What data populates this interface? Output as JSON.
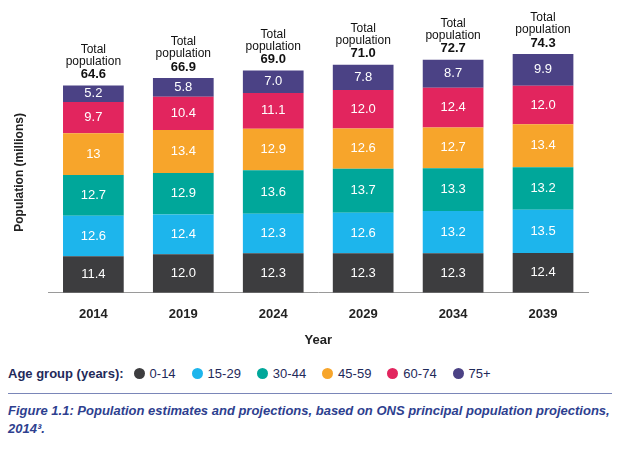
{
  "chart_data": {
    "type": "bar",
    "stacked": true,
    "data_labels": true,
    "grid": false,
    "tick_labels": "x",
    "legend": "bottom",
    "legend_title": "Age group (years):",
    "x_label": "Year",
    "y_label": "Population (millions)",
    "caption": "Figure 1.1: Population estimates and projections, based on ONS principal population projections, 2014³.",
    "total_label": "Total population",
    "totals": [
      64.6,
      66.9,
      69.0,
      71.0,
      72.7,
      74.3
    ],
    "total_value_labels": [
      "64.6",
      "66.9",
      "69.0",
      "71.0",
      "72.7",
      "74.3"
    ],
    "categories": [
      "2014",
      "2019",
      "2024",
      "2029",
      "2034",
      "2039"
    ],
    "ylim": [
      0,
      75
    ],
    "yticks": [
      0,
      75
    ],
    "series": [
      {
        "name": "0-14",
        "color": "#3d3d3f",
        "values": [
          11.4,
          12.0,
          12.3,
          12.3,
          12.3,
          12.4
        ],
        "value_labels": [
          "11.4",
          "12.0",
          "12.3",
          "12.3",
          "12.3",
          "12.4"
        ]
      },
      {
        "name": "15-29",
        "color": "#1db5ec",
        "values": [
          12.6,
          12.4,
          12.3,
          12.6,
          13.2,
          13.5
        ],
        "value_labels": [
          "12.6",
          "12.4",
          "12.3",
          "12.6",
          "13.2",
          "13.5"
        ]
      },
      {
        "name": "30-44",
        "color": "#00a79a",
        "values": [
          12.7,
          12.9,
          13.6,
          13.7,
          13.3,
          13.2
        ],
        "value_labels": [
          "12.7",
          "12.9",
          "13.6",
          "13.7",
          "13.3",
          "13.2"
        ]
      },
      {
        "name": "45-59",
        "color": "#f7a52b",
        "values": [
          13,
          13.4,
          12.9,
          12.6,
          12.7,
          13.4
        ],
        "value_labels": [
          "13",
          "13.4",
          "12.9",
          "12.6",
          "12.7",
          "13.4"
        ]
      },
      {
        "name": "60-74",
        "color": "#e2255e",
        "values": [
          9.7,
          10.4,
          11.1,
          12.0,
          12.4,
          12.0
        ],
        "value_labels": [
          "9.7",
          "10.4",
          "11.1",
          "12.0",
          "12.4",
          "12.0"
        ]
      },
      {
        "name": "75+",
        "color": "#4b4285",
        "values": [
          5.2,
          5.8,
          7.0,
          7.8,
          8.7,
          9.9
        ],
        "value_labels": [
          "5.2",
          "5.8",
          "7.0",
          "7.8",
          "8.7",
          "9.9"
        ]
      }
    ]
  }
}
